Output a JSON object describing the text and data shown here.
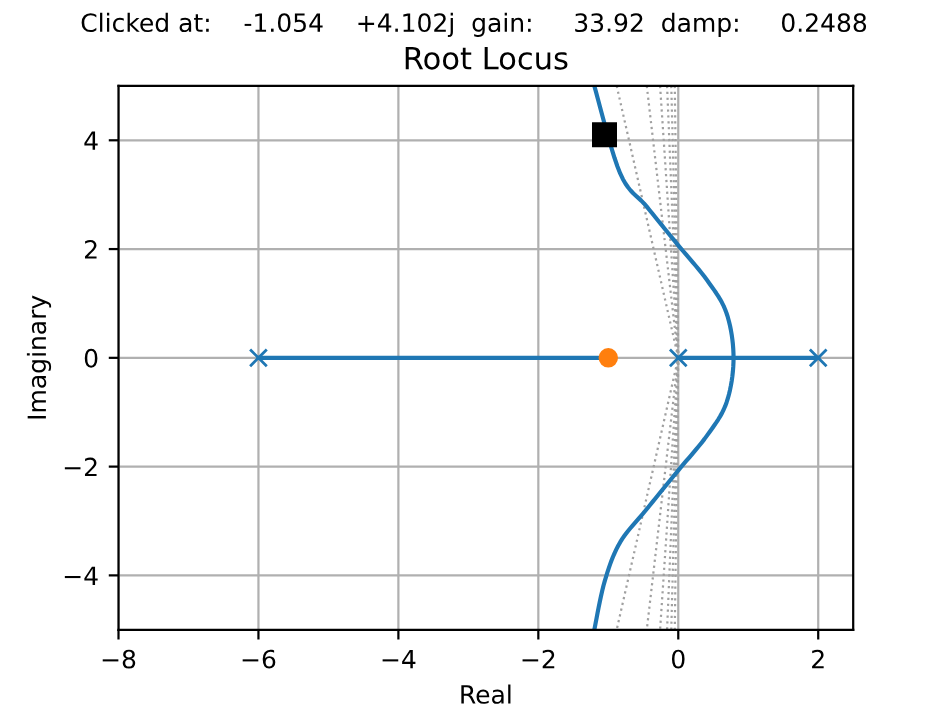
{
  "chart_data": {
    "type": "line",
    "title": "Root Locus",
    "subtitle": "Clicked at:    -1.054    +4.102j  gain:     33.92  damp:     0.2488",
    "xlabel": "Real",
    "ylabel": "Imaginary",
    "xlim": [
      -8,
      2.5
    ],
    "ylim": [
      -5,
      5
    ],
    "xticks": [
      {
        "value": -8,
        "label": "−8"
      },
      {
        "value": -6,
        "label": "−6"
      },
      {
        "value": -4,
        "label": "−4"
      },
      {
        "value": -2,
        "label": "−2"
      },
      0,
      2
    ],
    "yticks": [
      {
        "value": -4,
        "label": "−4"
      },
      {
        "value": -2,
        "label": "−2"
      },
      0,
      2,
      4
    ],
    "grid": true,
    "legend": false,
    "series": [
      {
        "type": "line",
        "color": "#a0a0a0",
        "line_style": "dotted",
        "marker": "none",
        "x": [
          -0.88,
          0,
          -0.88
        ],
        "values": [
          5,
          0,
          -5
        ]
      },
      {
        "type": "line",
        "color": "#a0a0a0",
        "line_style": "dotted",
        "marker": "none",
        "x": [
          -0.45,
          0,
          -0.45
        ],
        "values": [
          5,
          0,
          -5
        ]
      },
      {
        "type": "line",
        "color": "#a0a0a0",
        "line_style": "dotted",
        "marker": "none",
        "x": [
          -0.26,
          0,
          -0.26
        ],
        "values": [
          5,
          0,
          -5
        ]
      },
      {
        "type": "line",
        "color": "#a0a0a0",
        "line_style": "dotted",
        "marker": "none",
        "x": [
          -0.16,
          0,
          -0.16
        ],
        "values": [
          5,
          0,
          -5
        ]
      },
      {
        "type": "line",
        "color": "#a0a0a0",
        "line_style": "dotted",
        "marker": "none",
        "x": [
          -0.1,
          0,
          -0.1
        ],
        "values": [
          5,
          0,
          -5
        ]
      },
      {
        "type": "line",
        "color": "#a0a0a0",
        "line_style": "dotted",
        "marker": "none",
        "x": [
          -0.05,
          0,
          -0.05
        ],
        "values": [
          5,
          0,
          -5
        ]
      },
      {
        "color": "#1f77b4",
        "line_style": "solid",
        "marker": "none",
        "x": [
          -6,
          -1
        ],
        "values": [
          0,
          0
        ]
      },
      {
        "color": "#1f77b4",
        "line_style": "solid",
        "marker": "none",
        "x": [
          0,
          2
        ],
        "values": [
          0,
          0
        ]
      },
      {
        "color": "#1f77b4",
        "line_style": "solid",
        "marker": "none",
        "x": [
          -1.2,
          -0.83,
          -0.45,
          -0.02,
          0.41,
          0.69,
          0.79,
          0.69,
          0.41,
          -0.02,
          -0.45,
          -0.83,
          -1.05,
          -1.2
        ],
        "values": [
          5,
          3.39,
          2.78,
          2.1,
          1.43,
          0.82,
          0,
          -0.82,
          -1.43,
          -2.1,
          -2.78,
          -3.39,
          -4.1,
          -5
        ]
      },
      {
        "type": "scatter",
        "color": "#1f77b4",
        "marker": "cross",
        "x": [
          -6,
          0,
          2
        ],
        "values": [
          0,
          0,
          0
        ]
      },
      {
        "type": "scatter",
        "color": "#ff7f0e",
        "marker": "circle",
        "x": [
          -1
        ],
        "values": [
          0
        ]
      },
      {
        "type": "scatter",
        "color": "#000000",
        "marker": "square",
        "x": [
          -1.054
        ],
        "values": [
          4.102
        ]
      }
    ]
  }
}
